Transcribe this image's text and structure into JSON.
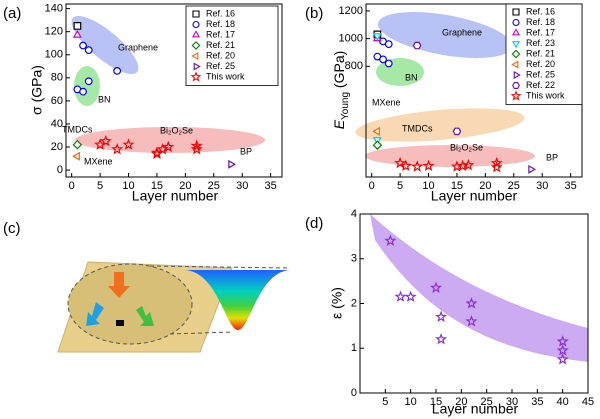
{
  "chart_data": [
    {
      "type": "scatter",
      "panel_label": "(a)",
      "xlabel": "Layer number",
      "ylabel": "σ (GPa)",
      "xlim": [
        -1,
        37
      ],
      "xticks": [
        0,
        5,
        10,
        15,
        20,
        25,
        30,
        35
      ],
      "ylim": [
        -6,
        144
      ],
      "yticks": [
        0,
        20,
        40,
        60,
        80,
        100,
        120,
        140
      ],
      "legend": "upper right",
      "annotations": [
        "Graphene",
        "BN",
        "TMDCs",
        "MXene",
        "Bi₂O₂Se",
        "BP"
      ],
      "series": [
        {
          "name": "Ref. 16",
          "color": "#000000",
          "marker": "square",
          "x": [
            1
          ],
          "y": [
            125
          ]
        },
        {
          "name": "Ref. 18",
          "color": "#0000ff",
          "marker": "circle",
          "x": [
            2,
            3,
            8,
            1,
            2,
            3
          ],
          "y": [
            108,
            104,
            86,
            70,
            68,
            77
          ]
        },
        {
          "name": "Ref. 17",
          "color": "#cc00cc",
          "marker": "triangle-up",
          "x": [
            1
          ],
          "y": [
            117
          ]
        },
        {
          "name": "Ref. 21",
          "color": "#008000",
          "marker": "diamond",
          "x": [
            1
          ],
          "y": [
            22
          ]
        },
        {
          "name": "Ref. 20",
          "color": "#ff6600",
          "marker": "triangle-left",
          "x": [
            1
          ],
          "y": [
            12
          ]
        },
        {
          "name": "Ref. 25",
          "color": "#6a0dad",
          "marker": "triangle-right",
          "x": [
            28
          ],
          "y": [
            5
          ]
        },
        {
          "name": "This work",
          "color": "#ff0000",
          "marker": "star",
          "x": [
            5,
            6,
            8,
            10,
            15,
            16,
            17,
            15,
            22,
            22
          ],
          "y": [
            22,
            25,
            18,
            22,
            15,
            18,
            20,
            14,
            18,
            21
          ]
        }
      ]
    },
    {
      "type": "scatter",
      "panel_label": "(b)",
      "xlabel": "Layer number",
      "ylabel": [
        "E",
        "Young",
        " (GPa)"
      ],
      "xlim": [
        -1,
        37
      ],
      "xticks": [
        0,
        5,
        10,
        15,
        20,
        25,
        30,
        35
      ],
      "ylim": [
        0,
        1250
      ],
      "yticks": [
        800,
        1000,
        1200
      ],
      "legend": "upper right",
      "annotations": [
        "Graphene",
        "BN",
        "MXene",
        "TMDCs",
        "Bi₂O₂Se",
        "BP"
      ],
      "series": [
        {
          "name": "Ref. 16",
          "color": "#000000",
          "marker": "square",
          "x": [
            1
          ],
          "y": [
            1030
          ]
        },
        {
          "name": "Ref. 18",
          "color": "#0000ff",
          "marker": "circle",
          "x": [
            2,
            3,
            1,
            2,
            3
          ],
          "y": [
            980,
            960,
            870,
            850,
            820
          ]
        },
        {
          "name": "Ref. 17",
          "color": "#cc00cc",
          "marker": "triangle-up",
          "x": [
            1
          ],
          "y": [
            1000
          ]
        },
        {
          "name": "Ref. 23",
          "color": "#00cccc",
          "marker": "triangle-down",
          "x": [
            1,
            1
          ],
          "y": [
            1020,
            270
          ]
        },
        {
          "name": "Ref. 21",
          "color": "#008000",
          "marker": "diamond",
          "x": [
            1
          ],
          "y": [
            230
          ]
        },
        {
          "name": "Ref. 20",
          "color": "#ff6600",
          "marker": "triangle-left",
          "x": [
            1
          ],
          "y": [
            330
          ]
        },
        {
          "name": "Ref. 25",
          "color": "#6a0dad",
          "marker": "triangle-right",
          "x": [
            28
          ],
          "y": [
            55
          ]
        },
        {
          "name": "Ref. 22",
          "color": "#6a0dad",
          "marker": "hexagon",
          "x": [
            8,
            15
          ],
          "y": [
            950,
            330
          ]
        },
        {
          "name": "This work",
          "color": "#ff0000",
          "marker": "star",
          "x": [
            5,
            6,
            8,
            10,
            15,
            16,
            17,
            22,
            22
          ],
          "y": [
            100,
            80,
            75,
            80,
            75,
            80,
            85,
            100,
            70
          ]
        }
      ]
    },
    {
      "type": "scatter",
      "panel_label": "(d)",
      "xlabel": "Layer number",
      "ylabel": "ε (%)",
      "xlim": [
        0,
        45
      ],
      "xticks": [
        5,
        10,
        15,
        20,
        25,
        30,
        35,
        40,
        45
      ],
      "ylim": [
        0,
        4
      ],
      "yticks": [
        0,
        1,
        2,
        3,
        4
      ],
      "series": [
        {
          "color": "#8a2be2",
          "marker": "star",
          "x": [
            6,
            8,
            10,
            15,
            16,
            16,
            22,
            22,
            40,
            40,
            40
          ],
          "y": [
            3.4,
            2.15,
            2.15,
            2.35,
            1.7,
            1.2,
            2.0,
            1.6,
            1.15,
            0.95,
            0.75
          ]
        }
      ]
    }
  ],
  "illustration": {
    "panel_label": "(c)"
  }
}
